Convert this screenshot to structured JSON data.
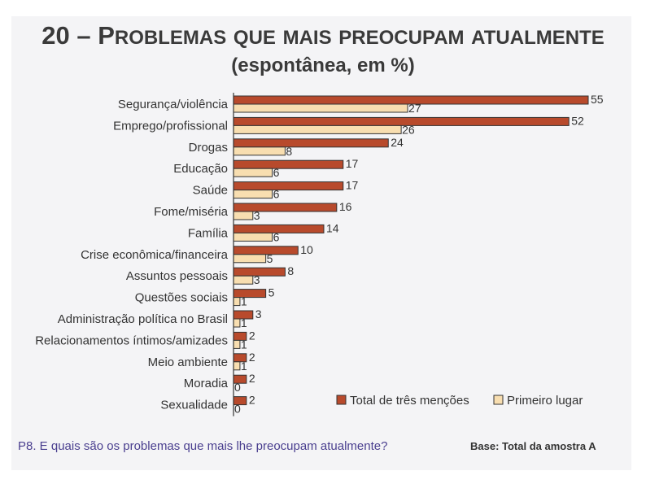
{
  "header": {
    "title": "20 – Problemas que mais preocupam atualmente",
    "subtitle": "(espontânea, em %)"
  },
  "footer": {
    "question": "P8. E quais são os problemas que mais lhe preocupam atualmente?",
    "base": "Base: Total da amostra A"
  },
  "colors": {
    "total": "#b84a2c",
    "primeiro": "#f8deb0",
    "bar_stroke": "#333333",
    "axis": "#333333"
  },
  "chart_data": {
    "type": "bar",
    "orientation": "horizontal",
    "categories": [
      "Segurança/violência",
      "Emprego/profissional",
      "Drogas",
      "Educação",
      "Saúde",
      "Fome/miséria",
      "Família",
      "Crise econômica/financeira",
      "Assuntos pessoais",
      "Questões sociais",
      "Administração política no Brasil",
      "Relacionamentos íntimos/amizades",
      "Meio ambiente",
      "Moradia",
      "Sexualidade"
    ],
    "series": [
      {
        "name": "Total de três menções",
        "values": [
          55,
          52,
          24,
          17,
          17,
          16,
          14,
          10,
          8,
          5,
          3,
          2,
          2,
          2,
          2
        ]
      },
      {
        "name": "Primeiro lugar",
        "values": [
          27,
          26,
          8,
          6,
          6,
          3,
          6,
          5,
          3,
          1,
          1,
          1,
          1,
          0,
          0
        ]
      }
    ],
    "xlim": [
      0,
      55
    ],
    "grid": false,
    "legend_position": "bottom-right"
  }
}
